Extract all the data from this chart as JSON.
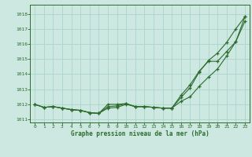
{
  "title": "Graphe pression niveau de la mer (hPa)",
  "bg_color": "#cce8e0",
  "grid_color": "#aad4cc",
  "line_color": "#2d6b2d",
  "x_ticks": [
    0,
    1,
    2,
    3,
    4,
    5,
    6,
    7,
    8,
    9,
    10,
    11,
    12,
    13,
    14,
    15,
    16,
    17,
    18,
    19,
    20,
    21,
    22,
    23
  ],
  "ylim": [
    1010.8,
    1018.6
  ],
  "yticks": [
    1011,
    1012,
    1013,
    1014,
    1015,
    1016,
    1017,
    1018
  ],
  "series1": [
    1012.0,
    1011.8,
    1011.85,
    1011.75,
    1011.65,
    1011.6,
    1011.45,
    1011.4,
    1011.75,
    1011.8,
    1012.0,
    1011.85,
    1011.85,
    1011.8,
    1011.75,
    1011.75,
    1012.45,
    1013.1,
    1014.15,
    1014.9,
    1015.4,
    1016.1,
    1017.0,
    1017.8
  ],
  "series2": [
    1012.0,
    1011.8,
    1011.85,
    1011.75,
    1011.65,
    1011.6,
    1011.45,
    1011.4,
    1011.85,
    1011.9,
    1012.05,
    1011.85,
    1011.85,
    1011.8,
    1011.75,
    1011.75,
    1012.2,
    1012.5,
    1013.2,
    1013.8,
    1014.35,
    1015.2,
    1016.15,
    1017.5
  ],
  "series3": [
    1012.0,
    1011.8,
    1011.85,
    1011.75,
    1011.65,
    1011.6,
    1011.45,
    1011.4,
    1012.0,
    1012.0,
    1012.05,
    1011.85,
    1011.85,
    1011.8,
    1011.75,
    1011.75,
    1012.6,
    1013.3,
    1014.2,
    1014.85,
    1014.85,
    1015.5,
    1016.15,
    1017.8
  ]
}
